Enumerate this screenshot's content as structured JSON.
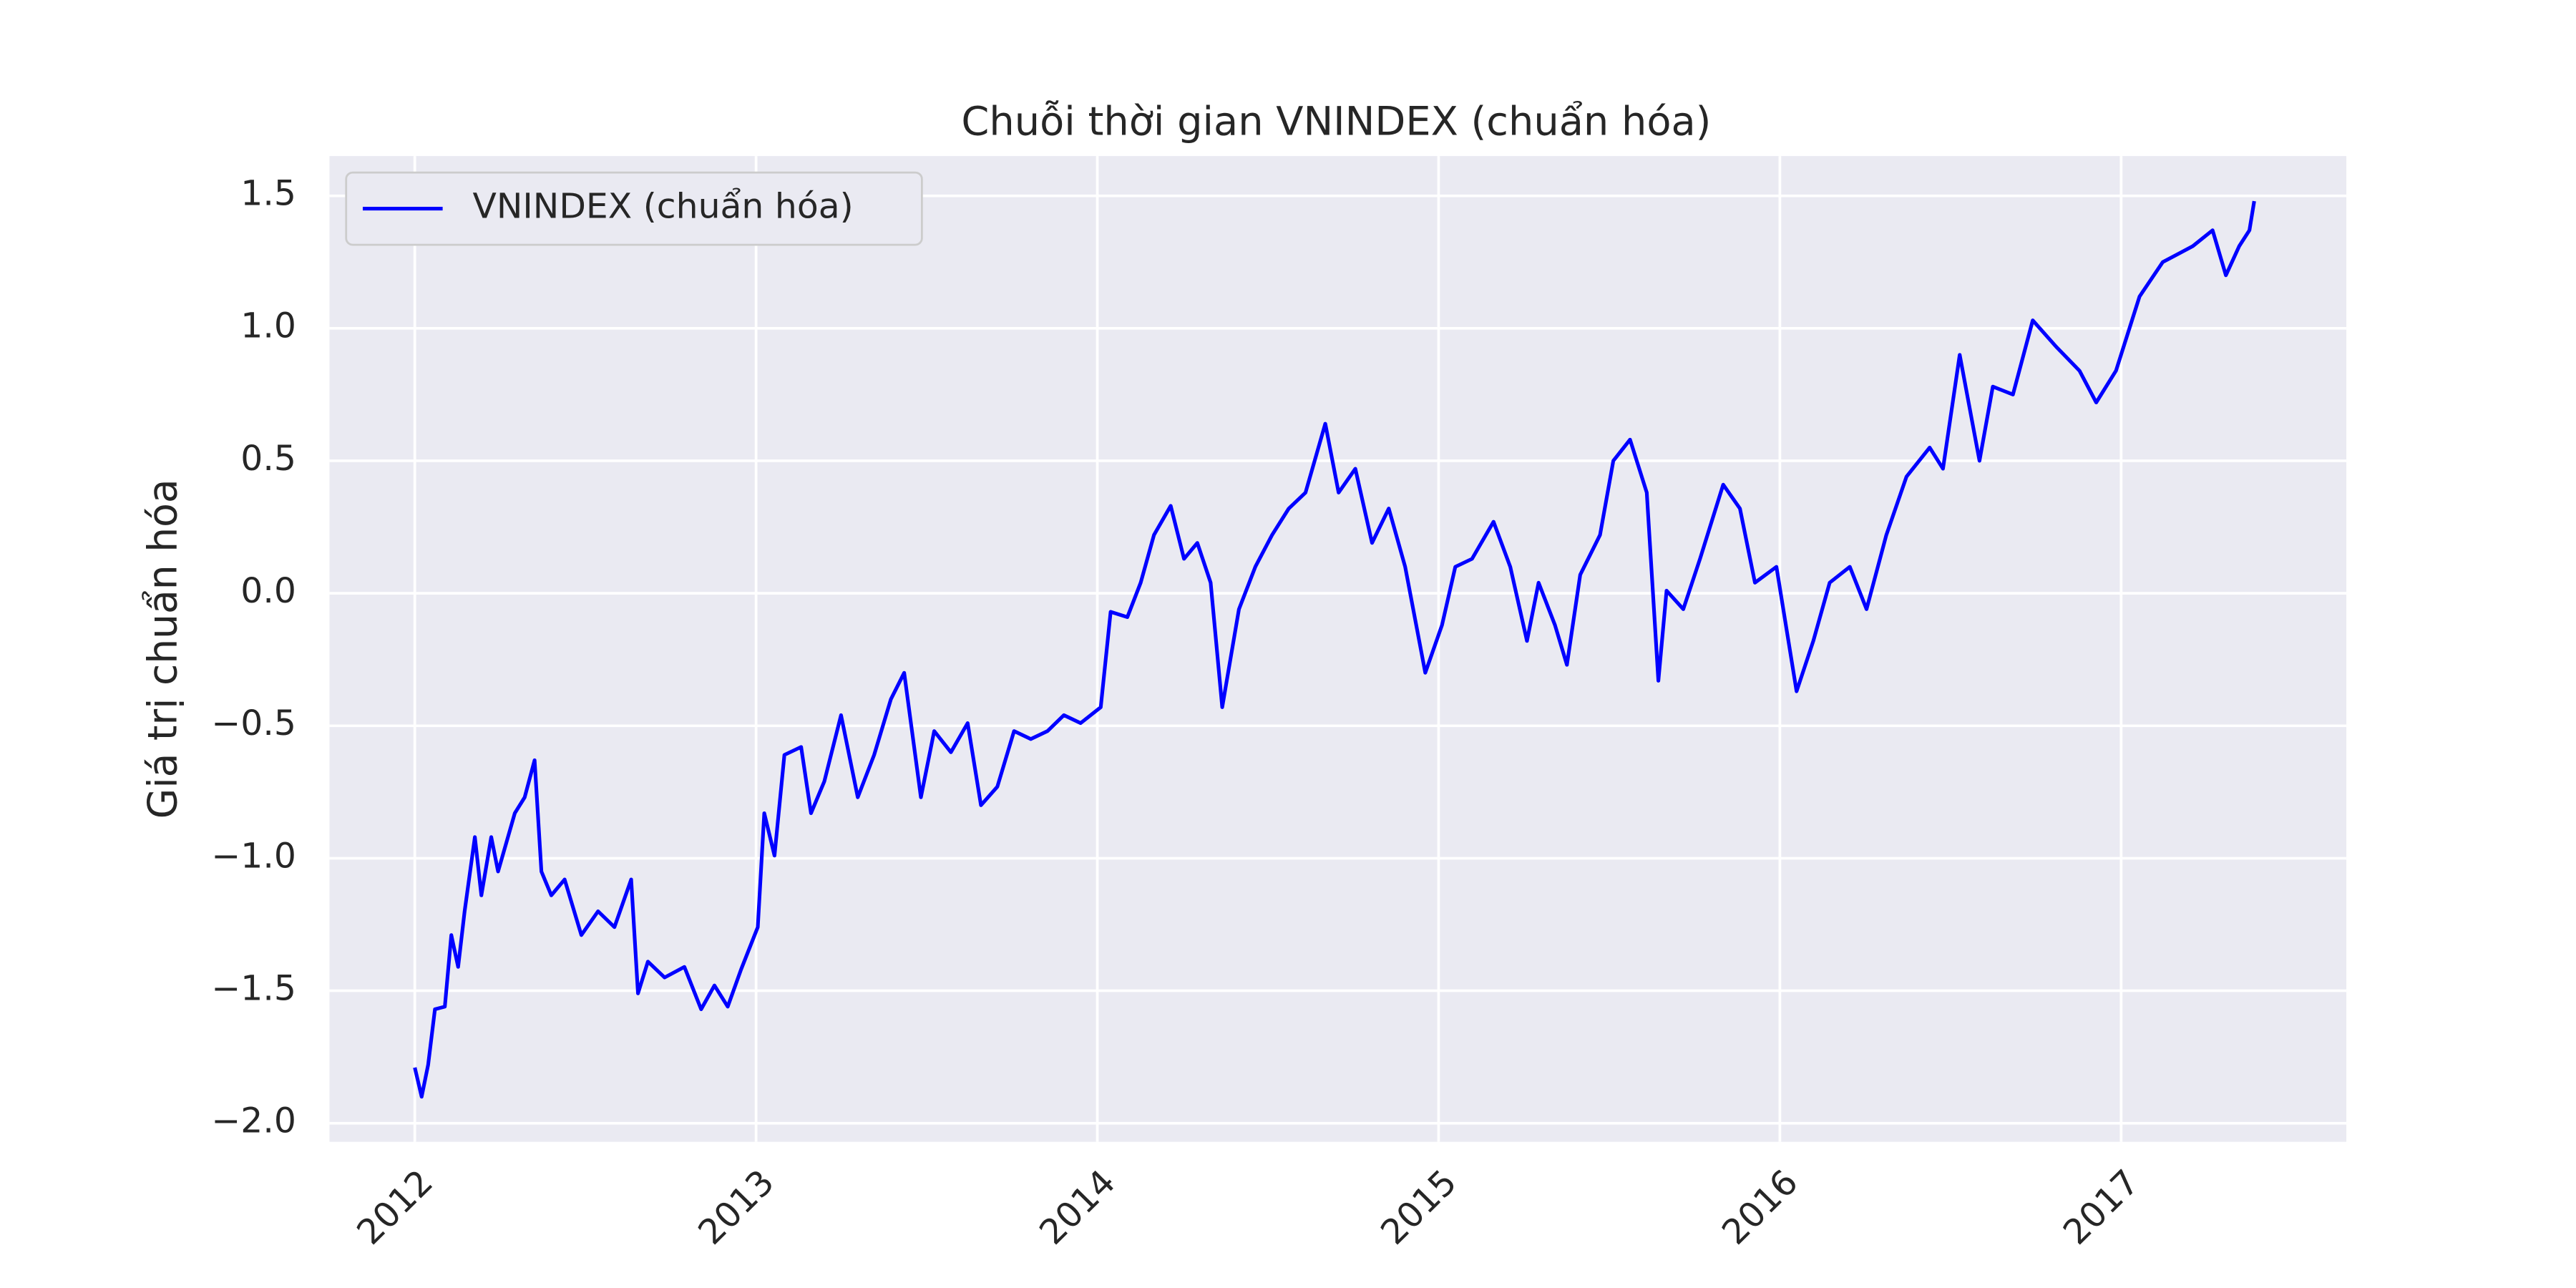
{
  "chart_data": {
    "type": "line",
    "title": "Chuỗi thời gian VNINDEX (chuẩn hóa)",
    "y_label": "Giá trị chuẩn hóa",
    "legend": "upper left",
    "grid": true,
    "xlim": [
      2011.75,
      2017.66
    ],
    "xticks": [
      2012,
      2013,
      2014,
      2015,
      2016,
      2017
    ],
    "ylim": [
      -2.07,
      1.65
    ],
    "yticks": [
      {
        "value": -2.0,
        "label": "−2.0"
      },
      {
        "value": -1.5,
        "label": "−1.5"
      },
      {
        "value": -1.0,
        "label": "−1.0"
      },
      {
        "value": -0.5,
        "label": "−0.5"
      },
      {
        "value": 0,
        "label": "0.0"
      },
      0.5,
      {
        "value": 1.0,
        "label": "1.0"
      },
      1.5
    ],
    "series": [
      {
        "name": "VNINDEX (chuẩn hóa)",
        "color": "#0000ff",
        "x": [
          2012.0,
          2012.02,
          2012.039,
          2012.059,
          2012.088,
          2012.107,
          2012.127,
          2012.146,
          2012.176,
          2012.195,
          2012.224,
          2012.244,
          2012.293,
          2012.322,
          2012.351,
          2012.371,
          2012.4,
          2012.439,
          2012.488,
          2012.537,
          2012.585,
          2012.634,
          2012.654,
          2012.683,
          2012.732,
          2012.79,
          2012.839,
          2012.878,
          2012.917,
          2012.956,
          2013.005,
          2013.024,
          2013.054,
          2013.083,
          2013.132,
          2013.161,
          2013.2,
          2013.249,
          2013.298,
          2013.346,
          2013.395,
          2013.434,
          2013.483,
          2013.522,
          2013.571,
          2013.62,
          2013.659,
          2013.707,
          2013.756,
          2013.805,
          2013.854,
          2013.902,
          2013.951,
          2014.01,
          2014.039,
          2014.088,
          2014.127,
          2014.166,
          2014.215,
          2014.254,
          2014.293,
          2014.332,
          2014.366,
          2014.415,
          2014.463,
          2014.512,
          2014.561,
          2014.61,
          2014.668,
          2014.707,
          2014.756,
          2014.805,
          2014.854,
          2014.902,
          2014.961,
          2015.01,
          2015.049,
          2015.098,
          2015.161,
          2015.21,
          2015.259,
          2015.293,
          2015.341,
          2015.376,
          2015.415,
          2015.473,
          2015.512,
          2015.561,
          2015.61,
          2015.644,
          2015.668,
          2015.717,
          2015.766,
          2015.834,
          2015.883,
          2015.927,
          2015.99,
          2016.049,
          2016.098,
          2016.146,
          2016.205,
          2016.254,
          2016.312,
          2016.371,
          2016.439,
          2016.478,
          2016.527,
          2016.585,
          2016.624,
          2016.683,
          2016.741,
          2016.81,
          2016.878,
          2016.927,
          2016.985,
          2017.054,
          2017.122,
          2017.21,
          2017.268,
          2017.307,
          2017.346,
          2017.376,
          2017.39
        ],
        "values": [
          -1.79,
          -1.9,
          -1.78,
          -1.57,
          -1.56,
          -1.29,
          -1.41,
          -1.2,
          -0.92,
          -1.14,
          -0.92,
          -1.05,
          -0.83,
          -0.77,
          -0.63,
          -1.05,
          -1.14,
          -1.08,
          -1.29,
          -1.2,
          -1.26,
          -1.08,
          -1.51,
          -1.39,
          -1.45,
          -1.41,
          -1.57,
          -1.48,
          -1.56,
          -1.42,
          -1.26,
          -0.83,
          -0.99,
          -0.61,
          -0.58,
          -0.83,
          -0.71,
          -0.46,
          -0.77,
          -0.61,
          -0.4,
          -0.3,
          -0.77,
          -0.52,
          -0.6,
          -0.49,
          -0.8,
          -0.73,
          -0.52,
          -0.55,
          -0.52,
          -0.46,
          -0.49,
          -0.43,
          -0.07,
          -0.09,
          0.04,
          0.22,
          0.33,
          0.13,
          0.19,
          0.04,
          -0.43,
          -0.06,
          0.1,
          0.22,
          0.32,
          0.38,
          0.64,
          0.38,
          0.47,
          0.19,
          0.32,
          0.1,
          -0.3,
          -0.12,
          0.1,
          0.13,
          0.27,
          0.1,
          -0.18,
          0.04,
          -0.12,
          -0.27,
          0.07,
          0.22,
          0.5,
          0.58,
          0.38,
          -0.33,
          0.01,
          -0.06,
          0.13,
          0.41,
          0.32,
          0.04,
          0.1,
          -0.37,
          -0.18,
          0.04,
          0.1,
          -0.06,
          0.22,
          0.44,
          0.55,
          0.47,
          0.9,
          0.5,
          0.78,
          0.75,
          1.03,
          0.93,
          0.84,
          0.72,
          0.84,
          1.12,
          1.25,
          1.31,
          1.37,
          1.2,
          1.31,
          1.37,
          1.48
        ]
      }
    ]
  }
}
